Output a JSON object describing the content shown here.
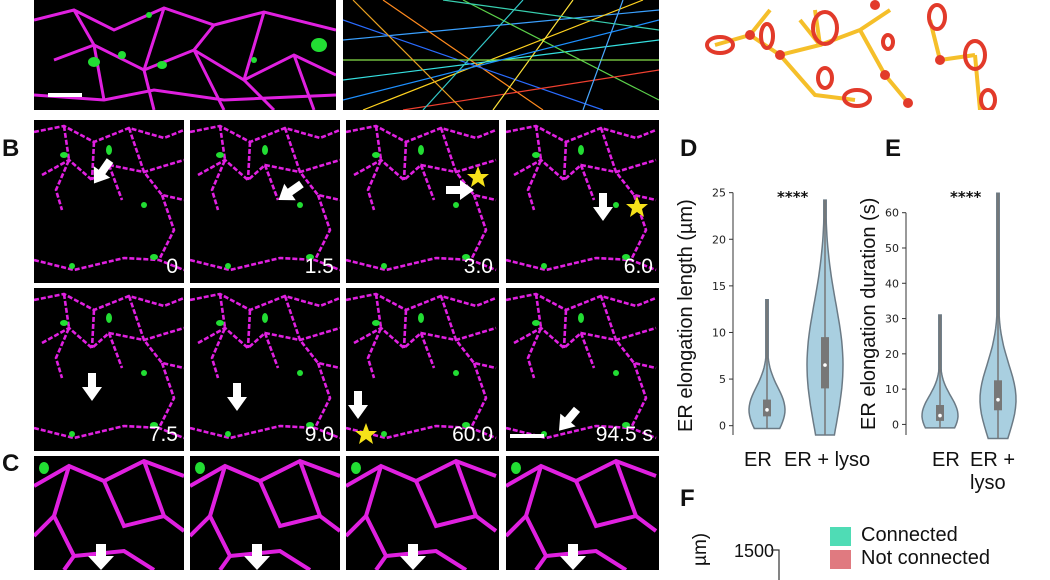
{
  "panel_letters": {
    "b": "B",
    "c": "C",
    "d": "D",
    "e": "E",
    "f": "F"
  },
  "timepoints_row1": [
    "0",
    "1.5",
    "3.0",
    "6.0"
  ],
  "timepoints_row2": [
    "7.5",
    "9.0",
    "60.0",
    "94.5 s"
  ],
  "colors": {
    "er": "#e020e0",
    "lyso": "#22dd33",
    "violin": "#a9cfe0",
    "violin_edge": "#6b7a85",
    "connected": "#4fdcb5",
    "not_connected": "#e07a80",
    "schematic_line": "#f5bf2a",
    "schematic_node": "#e23a2a",
    "star": "#f5e11a"
  },
  "panel_d": {
    "ylabel": "ER elongation length (µm)",
    "significance": "****",
    "categories": [
      "ER",
      "ER + lyso"
    ]
  },
  "panel_e": {
    "ylabel": "ER elongation duration (s)",
    "significance": "****",
    "categories": [
      "ER",
      "ER + lyso"
    ]
  },
  "panel_f": {
    "ylabel_fragment": "µm)",
    "ytick_top": "1500",
    "legend": [
      "Connected",
      "Not connected"
    ]
  },
  "chart_data": [
    {
      "type": "violin",
      "ylabel": "ER elongation length (µm)",
      "categories": [
        "ER",
        "ER + lyso"
      ],
      "yticks": [
        0,
        5,
        10,
        15,
        20,
        25
      ],
      "ylim": [
        -1,
        25.5
      ],
      "series": [
        {
          "category": "ER",
          "min": -0.3,
          "q1": 1.0,
          "median": 1.7,
          "q3": 2.8,
          "max": 13.5
        },
        {
          "category": "ER + lyso",
          "min": -1.0,
          "q1": 4.0,
          "median": 6.5,
          "q3": 9.5,
          "max": 24.2
        }
      ],
      "annotation": "****"
    },
    {
      "type": "violin",
      "ylabel": "ER elongation duration (s)",
      "categories": [
        "ER",
        "ER + lyso"
      ],
      "yticks": [
        0,
        10,
        20,
        30,
        40,
        50,
        60
      ],
      "ylim": [
        -3,
        67
      ],
      "series": [
        {
          "category": "ER",
          "min": -1.0,
          "q1": 1.0,
          "median": 2.5,
          "q3": 5.5,
          "max": 31.0
        },
        {
          "category": "ER + lyso",
          "min": -4.0,
          "q1": 4.0,
          "median": 7.0,
          "q3": 12.5,
          "max": 65.5
        }
      ],
      "annotation": "****"
    }
  ]
}
